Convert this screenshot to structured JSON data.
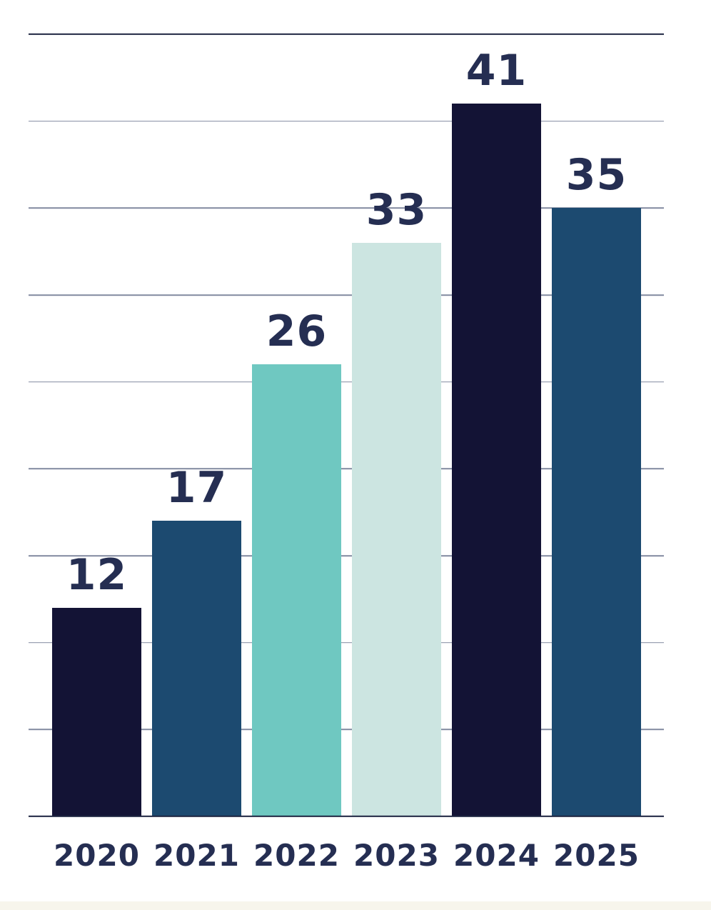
{
  "chart_data": {
    "type": "bar",
    "categories": [
      "2020",
      "2021",
      "2022",
      "2023",
      "2024",
      "2025"
    ],
    "values": [
      12,
      17,
      26,
      33,
      41,
      35
    ],
    "value_labels": [
      "12",
      "17",
      "26",
      "33",
      "41",
      "35"
    ],
    "bar_colors": [
      "#131335",
      "#1c4a70",
      "#6fc8c1",
      "#cce5e1",
      "#131335",
      "#1c4a70"
    ],
    "title": "",
    "xlabel": "",
    "ylabel": "",
    "ylim": [
      0,
      45
    ],
    "grid_step": 5,
    "grid": "horizontal",
    "legend_position": "none",
    "y_tick_labels_shown": false,
    "value_labels_position": "above-bars"
  },
  "layout_colors": {
    "background": "#ffffff",
    "label_text": "#252e52",
    "gridline_inner": "#828aa0",
    "gridline_edge": "#1d2440",
    "footer_strip": "#f7f5ec"
  }
}
